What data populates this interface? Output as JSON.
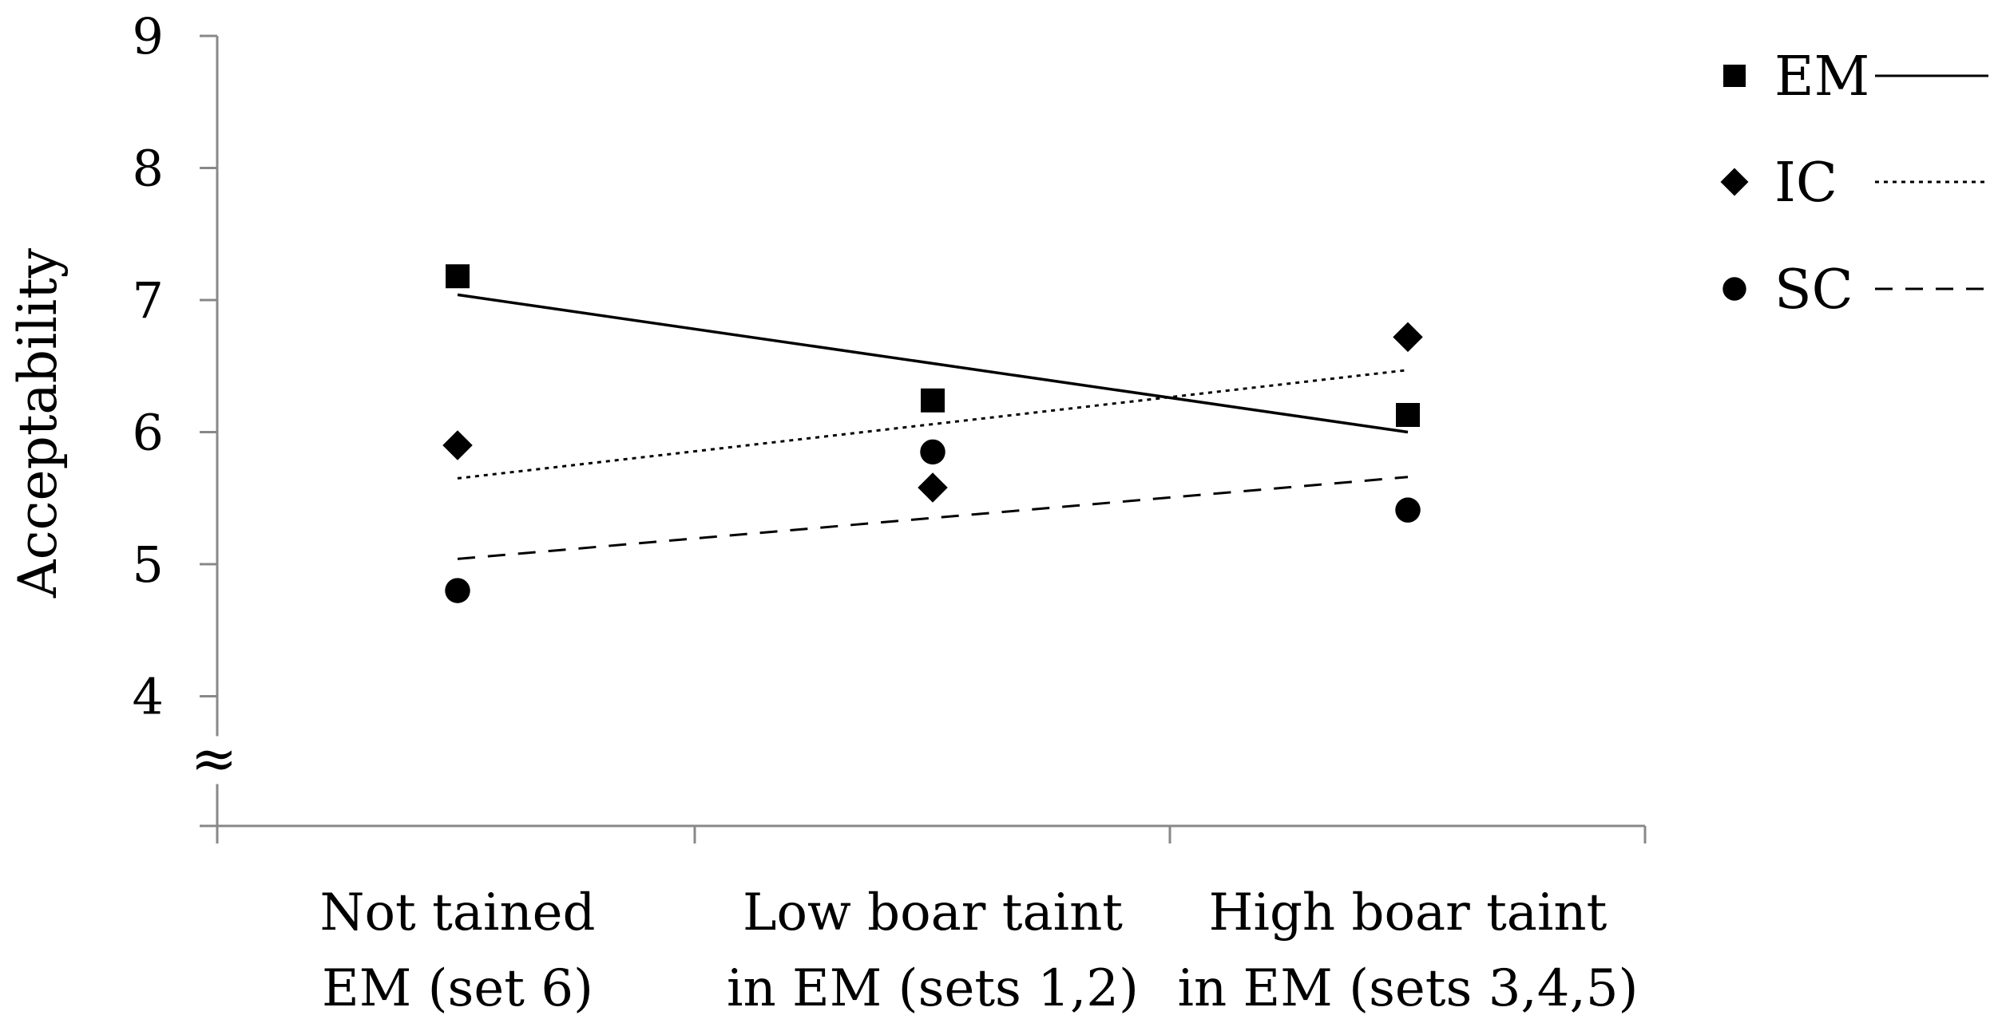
{
  "chart_data": {
    "type": "scatter",
    "title": "",
    "xlabel": "",
    "ylabel": "Acceptability",
    "categories": [
      [
        "Not tained",
        "EM (set 6)"
      ],
      [
        "Low boar taint",
        "in EM (sets 1,2)"
      ],
      [
        "High boar taint",
        "in EM (sets 3,4,5)"
      ]
    ],
    "yticks": [
      "9",
      "8",
      "7",
      "6",
      "5",
      "4"
    ],
    "ylim": [
      3,
      9
    ],
    "axis_break_symbol": "≈",
    "grid": false,
    "legend_position": "top-right",
    "series": [
      {
        "name": "EM",
        "marker": "square",
        "line_style": "solid",
        "values": [
          7.18,
          6.24,
          6.13
        ],
        "trend": [
          7.04,
          6.0
        ]
      },
      {
        "name": "IC",
        "marker": "diamond",
        "line_style": "dotted",
        "values": [
          5.9,
          5.58,
          6.72
        ],
        "trend": [
          5.65,
          6.47
        ]
      },
      {
        "name": "SC",
        "marker": "circle",
        "line_style": "dashed",
        "values": [
          4.8,
          5.85,
          5.41
        ],
        "trend": [
          5.04,
          5.66
        ]
      }
    ]
  }
}
